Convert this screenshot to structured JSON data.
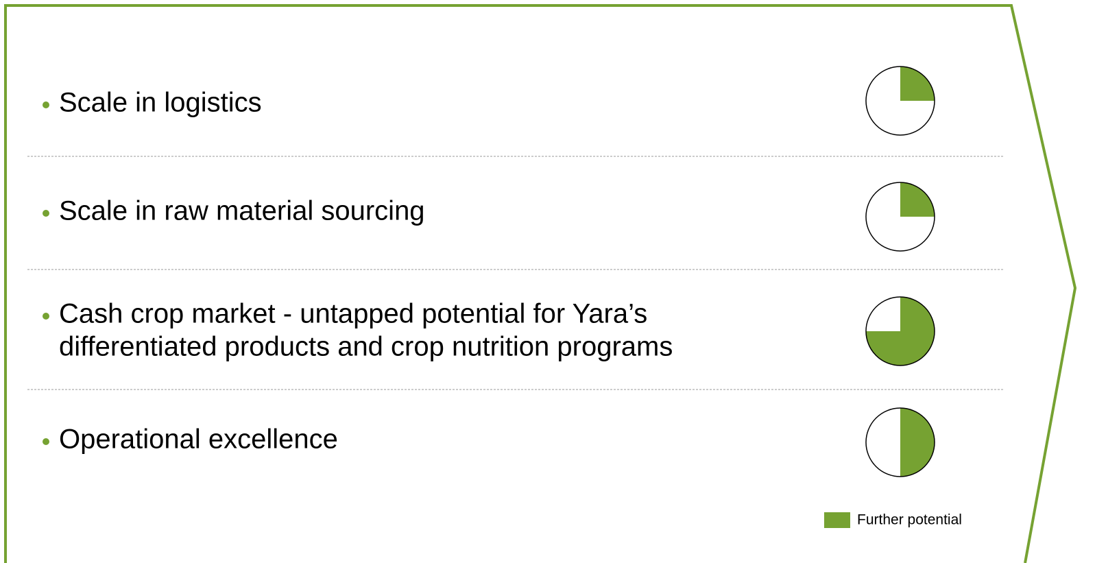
{
  "items": [
    {
      "lines": [
        "Scale in logistics"
      ],
      "potential": 0.25
    },
    {
      "lines": [
        "Scale in raw material sourcing"
      ],
      "potential": 0.25
    },
    {
      "lines": [
        "Cash crop market - untapped potential for Yara’s",
        "differentiated products and crop nutrition programs"
      ],
      "potential": 0.75
    },
    {
      "lines": [
        "Operational excellence"
      ],
      "potential": 0.5
    }
  ],
  "legend": {
    "label": "Further potential",
    "color": "#76a232"
  }
}
